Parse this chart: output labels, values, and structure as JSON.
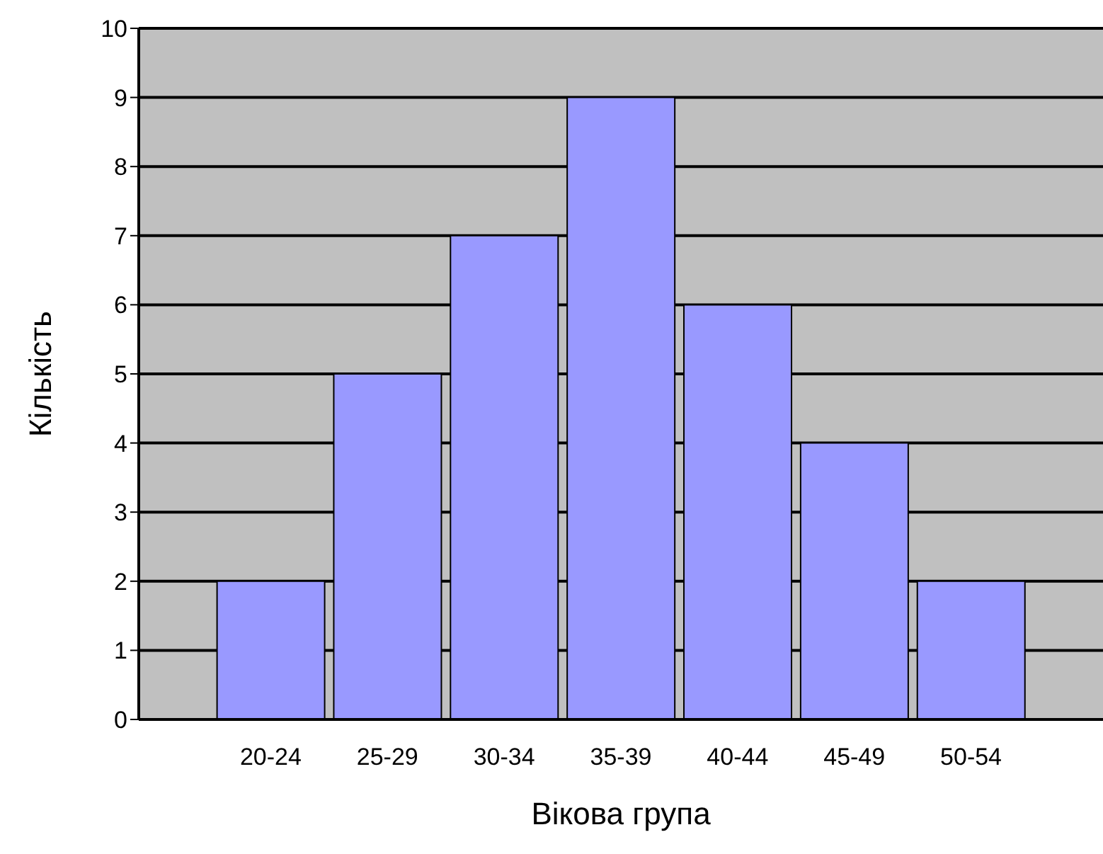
{
  "chart_data": {
    "type": "bar",
    "xlabel": "Вікова група",
    "ylabel": "Кількість",
    "categories": [
      "20-24",
      "25-29",
      "30-34",
      "35-39",
      "40-44",
      "45-49",
      "50-54"
    ],
    "values": [
      2,
      5,
      7,
      9,
      6,
      4,
      2
    ],
    "color": "#9999ff",
    "ylim": [
      0,
      10
    ],
    "yticks": [
      0,
      1,
      2,
      3,
      4,
      5,
      6,
      7,
      8,
      9,
      10
    ],
    "grid": "y"
  }
}
